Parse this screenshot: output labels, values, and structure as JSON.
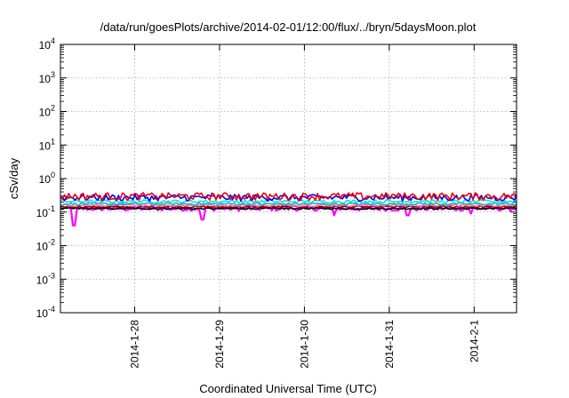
{
  "chart_data": {
    "type": "line",
    "title": "/data/run/goesPlots/archive/2014-02-01/12:00/flux/../bryn/5daysMoon.plot",
    "xlabel": "Coordinated Universal Time (UTC)",
    "ylabel": "cSv/day",
    "y_scale": "log",
    "ylim": [
      0.0001,
      10000
    ],
    "y_ticks": [
      {
        "value": 0.0001,
        "base": "10",
        "exp": "-4"
      },
      {
        "value": 0.001,
        "base": "10",
        "exp": "-3"
      },
      {
        "value": 0.01,
        "base": "10",
        "exp": "-2"
      },
      {
        "value": 0.1,
        "base": "10",
        "exp": "-1"
      },
      {
        "value": 1,
        "base": "10",
        "exp": "0"
      },
      {
        "value": 10,
        "base": "10",
        "exp": "1"
      },
      {
        "value": 100,
        "base": "10",
        "exp": "2"
      },
      {
        "value": 1000,
        "base": "10",
        "exp": "3"
      },
      {
        "value": 10000,
        "base": "10",
        "exp": "4"
      }
    ],
    "xlim": [
      "2014-01-27 03:00",
      "2014-02-01 12:00"
    ],
    "x_ticks": [
      "2014-1-28",
      "2014-1-29",
      "2014-1-30",
      "2014-1-31",
      "2014-2-1"
    ],
    "grid": true,
    "series": [
      {
        "color": "#ff00ff",
        "base": 0.12,
        "noise": 0.14,
        "dips": [
          [
            0.03,
            0.04
          ],
          [
            0.31,
            0.06
          ],
          [
            0.6,
            0.08
          ],
          [
            0.76,
            0.08
          ],
          [
            0.9,
            0.09
          ]
        ]
      },
      {
        "color": "#000000",
        "base": 0.125,
        "noise": 0.05,
        "dips": []
      },
      {
        "color": "#8b0000",
        "base": 0.14,
        "noise": 0.06,
        "dips": []
      },
      {
        "color": "#ff69b4",
        "base": 0.155,
        "noise": 0.07,
        "dips": []
      },
      {
        "color": "#20b2aa",
        "base": 0.17,
        "noise": 0.08,
        "dips": []
      },
      {
        "color": "#00e5e5",
        "base": 0.2,
        "noise": 0.1,
        "dips": []
      },
      {
        "color": "#0000ff",
        "base": 0.25,
        "noise": 0.22,
        "dips": []
      },
      {
        "color": "#e8000b",
        "base": 0.27,
        "noise": 0.26,
        "dips": []
      }
    ]
  }
}
